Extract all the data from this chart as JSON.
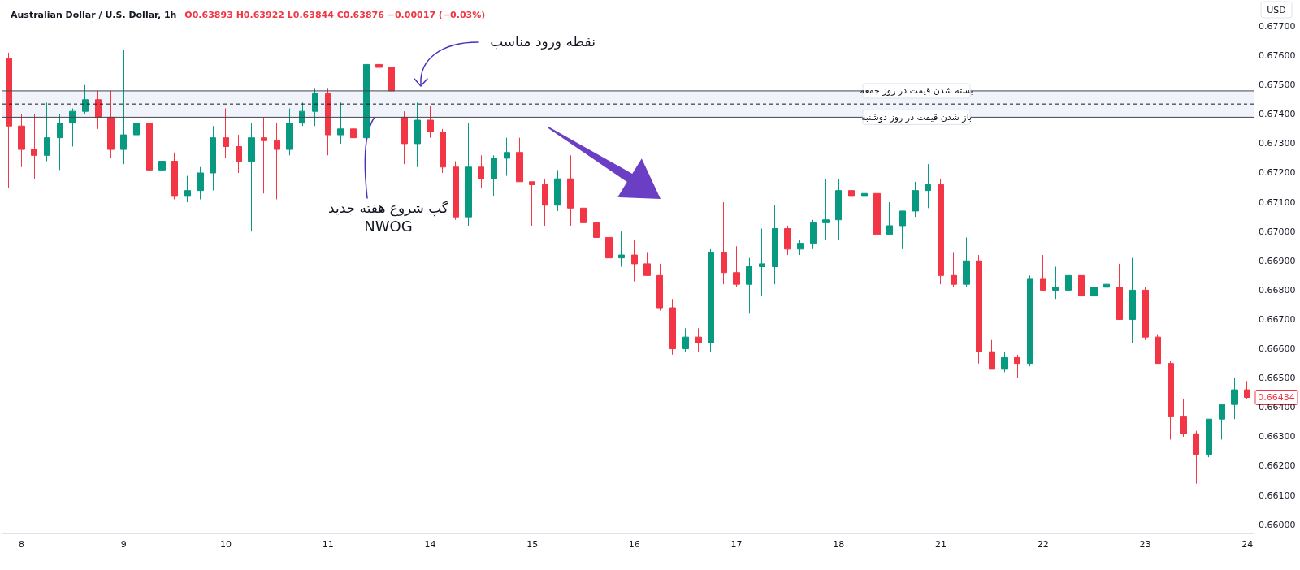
{
  "chart_data": {
    "type": "candlestick",
    "title": "Australian Dollar / U.S. Dollar, 1h",
    "subtitle": "O0.63893 H0.63922 L0.63844 C0.63876 −0.00017 (−0.03%)",
    "ylabel": "USD",
    "categories": [
      null,
      "8",
      null,
      null,
      null,
      null,
      null,
      null,
      null,
      "9",
      null,
      null,
      null,
      null,
      null,
      null,
      null,
      "10",
      null,
      null,
      null,
      null,
      null,
      null,
      null,
      "11",
      null,
      null,
      null,
      null,
      null,
      null,
      null,
      "14",
      null,
      null,
      null,
      null,
      null,
      null,
      null,
      "15",
      null,
      null,
      null,
      null,
      null,
      null,
      null,
      "16",
      null,
      null,
      null,
      null,
      null,
      null,
      null,
      "17",
      null,
      null,
      null,
      null,
      null,
      null,
      null,
      "18",
      null,
      null,
      null,
      null,
      null,
      null,
      null,
      "21",
      null,
      null,
      null,
      null,
      null,
      null,
      null,
      "22",
      null,
      null,
      null,
      null,
      null,
      null,
      null,
      "23",
      null,
      null,
      null,
      null,
      null,
      null,
      null,
      "24"
    ],
    "ohlc": [
      [
        0.6759,
        0.6761,
        0.6715,
        0.6736
      ],
      [
        0.6736,
        0.674,
        0.6722,
        0.6728
      ],
      [
        0.6728,
        0.674,
        0.6718,
        0.6726
      ],
      [
        0.6726,
        0.6744,
        0.6724,
        0.6732
      ],
      [
        0.6732,
        0.674,
        0.6721,
        0.6737
      ],
      [
        0.6737,
        0.6742,
        0.6729,
        0.6741
      ],
      [
        0.6741,
        0.675,
        0.674,
        0.6745
      ],
      [
        0.6745,
        0.6748,
        0.6735,
        0.6739
      ],
      [
        0.6739,
        0.6748,
        0.6725,
        0.6728
      ],
      [
        0.6728,
        0.6762,
        0.6723,
        0.6733
      ],
      [
        0.6733,
        0.6739,
        0.6724,
        0.6737
      ],
      [
        0.6737,
        0.6739,
        0.6717,
        0.6721
      ],
      [
        0.6721,
        0.6727,
        0.6707,
        0.6724
      ],
      [
        0.6724,
        0.6727,
        0.6711,
        0.6712
      ],
      [
        0.6712,
        0.6719,
        0.671,
        0.6714
      ],
      [
        0.6714,
        0.6722,
        0.6711,
        0.672
      ],
      [
        0.672,
        0.6736,
        0.6714,
        0.6732
      ],
      [
        0.6732,
        0.6742,
        0.6725,
        0.6729
      ],
      [
        0.6729,
        0.6733,
        0.672,
        0.6724
      ],
      [
        0.6724,
        0.6737,
        0.67,
        0.6732
      ],
      [
        0.6732,
        0.6739,
        0.6713,
        0.6731
      ],
      [
        0.6731,
        0.6737,
        0.6711,
        0.6728
      ],
      [
        0.6728,
        0.6742,
        0.6726,
        0.6737
      ],
      [
        0.6737,
        0.6744,
        0.6736,
        0.6741
      ],
      [
        0.6741,
        0.6749,
        0.6736,
        0.6747
      ],
      [
        0.6747,
        0.6749,
        0.6726,
        0.6733
      ],
      [
        0.6733,
        0.6744,
        0.673,
        0.6735
      ],
      [
        0.6735,
        0.6739,
        0.6726,
        0.6732
      ],
      [
        0.6732,
        0.6759,
        0.6727,
        0.6757
      ],
      [
        0.6757,
        0.6759,
        0.6755,
        0.6756
      ],
      [
        0.6756,
        0.6756,
        0.6747,
        0.6748
      ],
      [
        0.6739,
        0.6741,
        0.6723,
        0.673
      ],
      [
        0.673,
        0.6744,
        0.6722,
        0.6738
      ],
      [
        0.6738,
        0.6743,
        0.6732,
        0.6734
      ],
      [
        0.6734,
        0.6735,
        0.672,
        0.6722
      ],
      [
        0.6722,
        0.6724,
        0.6704,
        0.6705
      ],
      [
        0.6705,
        0.6737,
        0.6702,
        0.6722
      ],
      [
        0.6722,
        0.6726,
        0.6715,
        0.6718
      ],
      [
        0.6718,
        0.6726,
        0.6712,
        0.6725
      ],
      [
        0.6725,
        0.6732,
        0.6719,
        0.6727
      ],
      [
        0.6727,
        0.6732,
        0.6717,
        0.6717
      ],
      [
        0.6717,
        0.6717,
        0.6702,
        0.6716
      ],
      [
        0.6716,
        0.6718,
        0.6702,
        0.6709
      ],
      [
        0.6709,
        0.6721,
        0.6707,
        0.6718
      ],
      [
        0.6718,
        0.6726,
        0.6702,
        0.6708
      ],
      [
        0.6708,
        0.6708,
        0.6699,
        0.6703
      ],
      [
        0.6703,
        0.6704,
        0.6698,
        0.6698
      ],
      [
        0.6698,
        0.6698,
        0.6668,
        0.6691
      ],
      [
        0.6691,
        0.67,
        0.6688,
        0.6692
      ],
      [
        0.6692,
        0.6697,
        0.6683,
        0.6689
      ],
      [
        0.6689,
        0.6693,
        0.6685,
        0.6685
      ],
      [
        0.6685,
        0.6689,
        0.6673,
        0.6674
      ],
      [
        0.6674,
        0.6677,
        0.6658,
        0.666
      ],
      [
        0.666,
        0.6667,
        0.6659,
        0.6664
      ],
      [
        0.6664,
        0.6667,
        0.6659,
        0.6662
      ],
      [
        0.6662,
        0.6694,
        0.6659,
        0.6693
      ],
      [
        0.6693,
        0.671,
        0.6682,
        0.6686
      ],
      [
        0.6686,
        0.6695,
        0.6681,
        0.6682
      ],
      [
        0.6682,
        0.6691,
        0.6672,
        0.6688
      ],
      [
        0.6688,
        0.6701,
        0.6678,
        0.6689
      ],
      [
        0.6688,
        0.6709,
        0.6682,
        0.6701
      ],
      [
        0.6701,
        0.6702,
        0.6692,
        0.6694
      ],
      [
        0.6694,
        0.6697,
        0.6692,
        0.6696
      ],
      [
        0.6696,
        0.6704,
        0.6694,
        0.6703
      ],
      [
        0.6703,
        0.6718,
        0.6697,
        0.6704
      ],
      [
        0.6704,
        0.6718,
        0.6697,
        0.6714
      ],
      [
        0.6714,
        0.6717,
        0.6706,
        0.6712
      ],
      [
        0.6712,
        0.6719,
        0.6706,
        0.6713
      ],
      [
        0.6713,
        0.6719,
        0.6698,
        0.6699
      ],
      [
        0.6699,
        0.671,
        0.6699,
        0.6702
      ],
      [
        0.6702,
        0.6707,
        0.6694,
        0.6707
      ],
      [
        0.6707,
        0.6717,
        0.6705,
        0.6714
      ],
      [
        0.6714,
        0.6723,
        0.6708,
        0.6716
      ],
      [
        0.6716,
        0.6718,
        0.6682,
        0.6685
      ],
      [
        0.6685,
        0.6693,
        0.6681,
        0.6682
      ],
      [
        0.6682,
        0.6698,
        0.6681,
        0.669
      ],
      [
        0.669,
        0.6692,
        0.6655,
        0.6659
      ],
      [
        0.6659,
        0.6663,
        0.6653,
        0.6653
      ],
      [
        0.6653,
        0.6659,
        0.6652,
        0.6657
      ],
      [
        0.6657,
        0.6658,
        0.665,
        0.6655
      ],
      [
        0.6655,
        0.6685,
        0.6654,
        0.6684
      ],
      [
        0.6684,
        0.6692,
        0.668,
        0.668
      ],
      [
        0.668,
        0.6688,
        0.6677,
        0.6681
      ],
      [
        0.668,
        0.6692,
        0.6679,
        0.6685
      ],
      [
        0.6685,
        0.6695,
        0.6677,
        0.6678
      ],
      [
        0.6678,
        0.6692,
        0.6676,
        0.6681
      ],
      [
        0.6681,
        0.6685,
        0.6679,
        0.6682
      ],
      [
        0.6681,
        0.6689,
        0.667,
        0.667
      ],
      [
        0.667,
        0.6691,
        0.6662,
        0.668
      ],
      [
        0.668,
        0.6681,
        0.6663,
        0.6664
      ],
      [
        0.6664,
        0.6665,
        0.6655,
        0.6655
      ],
      [
        0.6655,
        0.6656,
        0.6629,
        0.6637
      ],
      [
        0.6637,
        0.6643,
        0.663,
        0.6631
      ],
      [
        0.6631,
        0.6632,
        0.6614,
        0.6624
      ],
      [
        0.6624,
        0.6636,
        0.6623,
        0.6636
      ],
      [
        0.6636,
        0.6641,
        0.6629,
        0.6641
      ],
      [
        0.6641,
        0.665,
        0.6636,
        0.6646
      ],
      [
        0.6646,
        0.6649,
        0.6643,
        0.66434
      ]
    ],
    "colors": [
      "#f23645",
      "#f23645",
      "#f23645",
      "#089981",
      "#089981",
      "#089981",
      "#089981",
      "#f23645",
      "#f23645",
      "#089981",
      "#089981",
      "#f23645",
      "#089981",
      "#f23645",
      "#089981",
      "#089981",
      "#089981",
      "#f23645",
      "#f23645",
      "#089981",
      "#f23645",
      "#f23645",
      "#089981",
      "#089981",
      "#089981",
      "#f23645",
      "#089981",
      "#f23645",
      "#089981",
      "#f23645",
      "#f23645",
      "#f23645",
      "#089981",
      "#f23645",
      "#f23645",
      "#f23645",
      "#089981",
      "#f23645",
      "#089981",
      "#089981",
      "#f23645",
      "#f23645",
      "#f23645",
      "#089981",
      "#f23645",
      "#f23645",
      "#f23645",
      "#f23645",
      "#089981",
      "#f23645",
      "#f23645",
      "#f23645",
      "#f23645",
      "#089981",
      "#f23645",
      "#089981",
      "#f23645",
      "#f23645",
      "#089981",
      "#089981",
      "#089981",
      "#f23645",
      "#089981",
      "#089981",
      "#089981",
      "#089981",
      "#f23645",
      "#089981",
      "#f23645",
      "#089981",
      "#089981",
      "#089981",
      "#089981",
      "#f23645",
      "#f23645",
      "#089981",
      "#f23645",
      "#f23645",
      "#089981",
      "#f23645",
      "#089981",
      "#f23645",
      "#089981",
      "#089981",
      "#f23645",
      "#089981",
      "#089981",
      "#f23645",
      "#089981",
      "#f23645",
      "#f23645",
      "#f23645",
      "#f23645",
      "#f23645",
      "#089981",
      "#089981",
      "#089981",
      "#f23645"
    ],
    "ylim": [
      0.6597,
      0.6779
    ],
    "yticks": [
      {
        "value": 0.66,
        "label": "0.66000"
      },
      {
        "value": 0.661,
        "label": "0.66100"
      },
      {
        "value": 0.662,
        "label": "0.66200"
      },
      {
        "value": 0.663,
        "label": "0.66300"
      },
      {
        "value": 0.664,
        "label": "0.66400"
      },
      {
        "value": 0.665,
        "label": "0.66500"
      },
      {
        "value": 0.666,
        "label": "0.66600"
      },
      {
        "value": 0.667,
        "label": "0.66700"
      },
      {
        "value": 0.668,
        "label": "0.66800"
      },
      {
        "value": 0.669,
        "label": "0.66900"
      },
      {
        "value": 0.67,
        "label": "0.67000"
      },
      {
        "value": 0.671,
        "label": "0.67100"
      },
      {
        "value": 0.672,
        "label": "0.67200"
      },
      {
        "value": 0.673,
        "label": "0.67300"
      },
      {
        "value": 0.674,
        "label": "0.67400"
      },
      {
        "value": 0.675,
        "label": "0.67500"
      },
      {
        "value": 0.676,
        "label": "0.67600"
      },
      {
        "value": 0.677,
        "label": "0.67700"
      }
    ],
    "bands": [
      {
        "axis": "y",
        "from": 0.6739,
        "to": 0.6748,
        "color": "#f0f3fa"
      }
    ],
    "ref_lines": [
      {
        "axis": "y",
        "value": 0.6748,
        "label": "بسته شدن قیمت در روز جمعه",
        "color": "#434651"
      },
      {
        "axis": "y",
        "value": 0.6739,
        "label": "باز شدن قیمت در روز دوشنبه",
        "color": "#434651"
      },
      {
        "axis": "y",
        "value": 0.67435,
        "line_style": "dashed",
        "color": "#131722"
      }
    ],
    "annotations": [
      "نقطه ورود مناسب",
      {
        "text": "گپ شروع هفته جدید",
        "y": 0.67435
      },
      "NWOG",
      "0.66434"
    ]
  }
}
